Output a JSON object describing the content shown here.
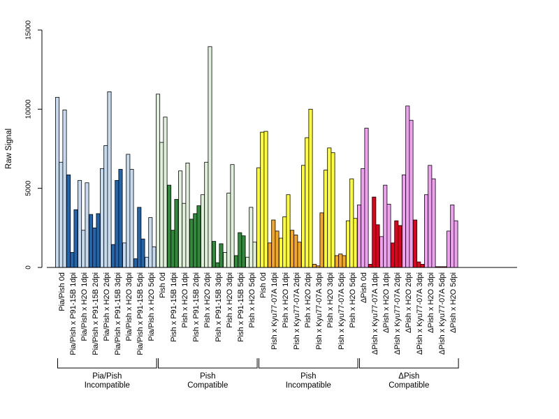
{
  "chart_data": {
    "type": "bar",
    "ylabel": "Raw Signal",
    "xlabel": "",
    "ylim": [
      0,
      15000
    ],
    "yticks": [
      0,
      5000,
      10000,
      15000
    ],
    "bars_per_category": 3,
    "grid": false,
    "legend": "none",
    "categories": [
      "Pia/Pish 0d",
      "Pia/Pish x P91-15B 1dpi",
      "Pia/Pish x H2O 1dpi",
      "Pia/Pish x P91-15B 2dpi",
      "Pia/Pish x H2O 2dpi",
      "Pia/Pish x P91-15B 3dpi",
      "Pia/Pish x H2O 3dpi",
      "Pia/Pish x P91-15B 5dpi",
      "Pia/Pish x H2O 5dpi",
      "Pish 0d",
      "Pish x P91-15B 1dpi",
      "Pish x H2O 1dpi",
      "Pish x P91-15B 2dpi",
      "Pish x H2O 2dpi",
      "Pish x P91-15B 3dpi",
      "Pish x H2O 3dpi",
      "Pish x P91-15B 5dpi",
      "Pish x H2O 5dpi",
      "Pish 0d",
      "Pish x Kyu77-07A 1dpi",
      "Pish x H2O 1dpi",
      "Pish x Kyu77-07A 2dpi",
      "Pish x H2O 2dpi",
      "Pish x Kyu77-07A 3dpi",
      "Pish x H2O 3dpi",
      "Pish x Kyu77-07A 5dpi",
      "Pish x H2O 5dpi",
      "ΔPish 0d",
      "ΔPish x Kyu77-07A 1dpi",
      "ΔPish x H2O 1dpi",
      "ΔPish x Kyu77-07A 2dpi",
      "ΔPish x H2O 2dpi",
      "ΔPish x Kyu77-07A 3dpi",
      "ΔPish x H2O 3dpi",
      "ΔPish x Kyu77-07A 5dpi",
      "ΔPish x H2O 5dpi"
    ],
    "colors": {
      "pia_light": "#C6DBEF",
      "pia_dark": "#2166AC",
      "pishc_light": "#E0F0DA",
      "pishc_dark": "#2E8B3A",
      "pishi_light": "#FFFF33",
      "pishi_dark": "#F5A623",
      "dpish_light": "#F0A0F0",
      "dpish_dark": "#E3001B"
    },
    "bar_colors": [
      "pia_light",
      "pia_dark",
      "pia_light",
      "pia_dark",
      "pia_light",
      "pia_dark",
      "pia_light",
      "pia_dark",
      "pia_light",
      "pishc_light",
      "pishc_dark",
      "pishc_light",
      "pishc_dark",
      "pishc_light",
      "pishc_dark",
      "pishc_light",
      "pishc_dark",
      "pishc_light",
      "pishi_light",
      "pishi_dark",
      "pishi_light",
      "pishi_dark",
      "pishi_light",
      "pishi_dark",
      "pishi_light",
      "pishi_dark",
      "pishi_light",
      "dpish_light",
      "dpish_dark",
      "dpish_light",
      "dpish_dark",
      "dpish_light",
      "dpish_dark",
      "dpish_light",
      "dpish_dark",
      "dpish_light"
    ],
    "values": [
      [
        10750,
        6650,
        9950
      ],
      [
        5850,
        950,
        3650
      ],
      [
        5500,
        2350,
        5350
      ],
      [
        3350,
        2500,
        3400
      ],
      [
        6250,
        7700,
        11100
      ],
      [
        1450,
        5500,
        6200
      ],
      [
        1550,
        7150,
        6200
      ],
      [
        550,
        3800,
        1800
      ],
      [
        650,
        3150,
        1300
      ],
      [
        10950,
        7900,
        9500
      ],
      [
        5200,
        2350,
        4300
      ],
      [
        6100,
        4050,
        6600
      ],
      [
        3050,
        3400,
        3900
      ],
      [
        4600,
        6650,
        13950
      ],
      [
        1650,
        300,
        1500
      ],
      [
        950,
        4700,
        6500
      ],
      [
        750,
        2200,
        2000
      ],
      [
        650,
        3800,
        1600
      ],
      [
        6300,
        8550,
        8600
      ],
      [
        1550,
        3000,
        2300
      ],
      [
        1850,
        3200,
        4600
      ],
      [
        2350,
        2050,
        1600
      ],
      [
        6450,
        8200,
        10000
      ],
      [
        200,
        100,
        3450
      ],
      [
        6150,
        7550,
        7250
      ],
      [
        750,
        850,
        750
      ],
      [
        2950,
        5600,
        3100
      ],
      [
        3950,
        6250,
        8800
      ],
      [
        200,
        4450,
        2700
      ],
      [
        1950,
        5200,
        4000
      ],
      [
        1550,
        2950,
        2650
      ],
      [
        5850,
        10200,
        9300
      ],
      [
        3000,
        350,
        200
      ],
      [
        4600,
        6450,
        5600
      ],
      [
        50,
        50,
        50
      ],
      [
        2300,
        3950,
        2950
      ]
    ],
    "groups": [
      {
        "line1": "Pia/Pish",
        "line2": "Incompatible",
        "start": 0,
        "end": 8
      },
      {
        "line1": "Pish",
        "line2": "Compatible",
        "start": 9,
        "end": 17
      },
      {
        "line1": "Pish",
        "line2": "Incompatible",
        "start": 18,
        "end": 26
      },
      {
        "line1": "ΔPish",
        "line2": "Compatible",
        "start": 27,
        "end": 35
      }
    ]
  }
}
